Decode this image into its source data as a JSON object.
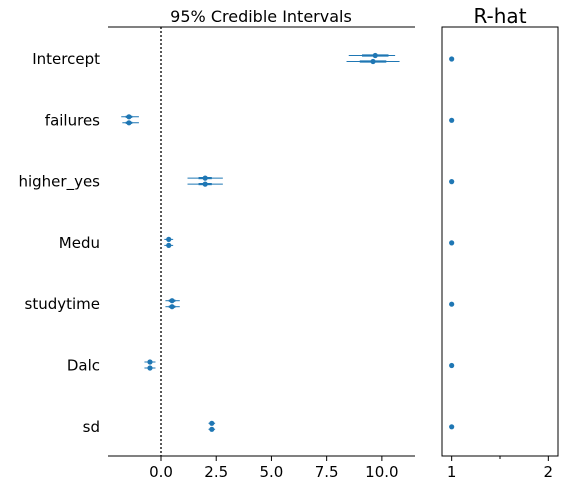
{
  "chart_data": [
    {
      "type": "forest",
      "title": "95% Credible Intervals",
      "xlim": [
        -2.4,
        11.5
      ],
      "xticks": [
        0.0,
        2.5,
        5.0,
        7.5,
        10.0
      ],
      "xtick_labels": [
        "0.0",
        "2.5",
        "5.0",
        "7.5",
        "10.0"
      ],
      "reference_line": 0,
      "marker_color": "#1f77b4",
      "parameters": [
        {
          "name": "Intercept",
          "chains": [
            {
              "mean": 9.7,
              "inner": [
                9.1,
                10.3
              ],
              "low": 8.5,
              "high": 10.6
            },
            {
              "mean": 9.6,
              "inner": [
                9.0,
                10.2
              ],
              "low": 8.4,
              "high": 10.8
            }
          ]
        },
        {
          "name": "failures",
          "chains": [
            {
              "mean": -1.45,
              "inner": [
                -1.6,
                -1.3
              ],
              "low": -1.8,
              "high": -1.0
            },
            {
              "mean": -1.45,
              "inner": [
                -1.6,
                -1.3
              ],
              "low": -1.75,
              "high": -1.0
            }
          ]
        },
        {
          "name": "higher_yes",
          "chains": [
            {
              "mean": 2.0,
              "inner": [
                1.7,
                2.3
              ],
              "low": 1.2,
              "high": 2.8
            },
            {
              "mean": 2.0,
              "inner": [
                1.7,
                2.3
              ],
              "low": 1.2,
              "high": 2.8
            }
          ]
        },
        {
          "name": "Medu",
          "chains": [
            {
              "mean": 0.35,
              "inner": [
                0.25,
                0.45
              ],
              "low": 0.15,
              "high": 0.55
            },
            {
              "mean": 0.35,
              "inner": [
                0.25,
                0.45
              ],
              "low": 0.15,
              "high": 0.55
            }
          ]
        },
        {
          "name": "studytime",
          "chains": [
            {
              "mean": 0.5,
              "inner": [
                0.35,
                0.65
              ],
              "low": 0.2,
              "high": 0.85
            },
            {
              "mean": 0.5,
              "inner": [
                0.35,
                0.65
              ],
              "low": 0.2,
              "high": 0.85
            }
          ]
        },
        {
          "name": "Dalc",
          "chains": [
            {
              "mean": -0.5,
              "inner": [
                -0.6,
                -0.4
              ],
              "low": -0.75,
              "high": -0.25
            },
            {
              "mean": -0.5,
              "inner": [
                -0.6,
                -0.4
              ],
              "low": -0.75,
              "high": -0.25
            }
          ]
        },
        {
          "name": "sd",
          "chains": [
            {
              "mean": 2.3,
              "inner": [
                2.2,
                2.4
              ],
              "low": 2.15,
              "high": 2.45
            },
            {
              "mean": 2.3,
              "inner": [
                2.2,
                2.4
              ],
              "low": 2.15,
              "high": 2.45
            }
          ]
        }
      ]
    },
    {
      "type": "scatter",
      "title": "R-hat",
      "xlim": [
        0.9,
        2.1
      ],
      "xticks": [
        1,
        2
      ],
      "xtick_labels": [
        "1",
        "2"
      ],
      "minor_ticks": [
        1.5
      ],
      "marker_color": "#1f77b4",
      "values": [
        1.0,
        1.0,
        1.0,
        1.0,
        1.0,
        1.0,
        1.0
      ]
    }
  ]
}
